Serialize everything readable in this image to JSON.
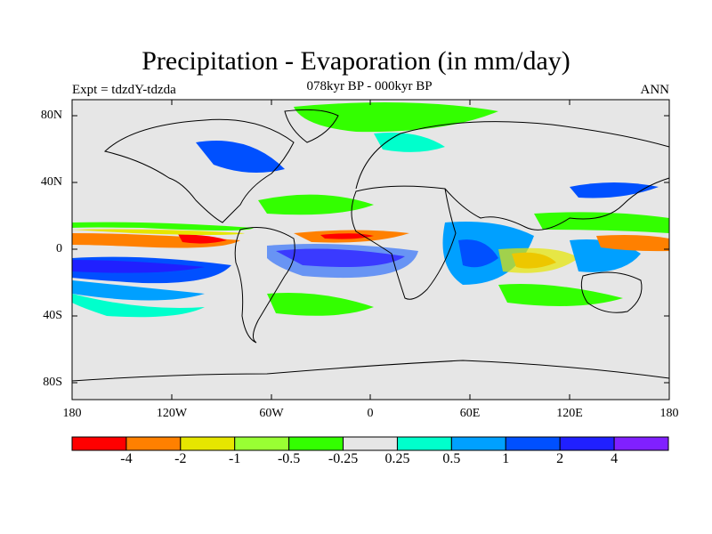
{
  "title": "Precipitation - Evaporation (in mm/day)",
  "subtitle": "078kyr BP - 000kyr BP",
  "left_label": "Expt = tdzdY-tdzda",
  "right_label": "ANN",
  "y_ticks": [
    "80N",
    "40N",
    "0",
    "40S",
    "80S"
  ],
  "x_ticks": [
    "180",
    "120W",
    "60W",
    "0",
    "60E",
    "120E",
    "180"
  ],
  "colorbar": {
    "colors": [
      "#ff0000",
      "#ff8000",
      "#e6e600",
      "#99ff33",
      "#33ff00",
      "#e6e6e6",
      "#00ffcc",
      "#00a0ff",
      "#0050ff",
      "#2020ff",
      "#8020ff"
    ],
    "labels": [
      "-4",
      "-2",
      "-1",
      "-0.5",
      "-0.25",
      "0.25",
      "0.5",
      "1",
      "2",
      "4"
    ]
  },
  "land_ocean_fill": "#e6e6e6"
}
